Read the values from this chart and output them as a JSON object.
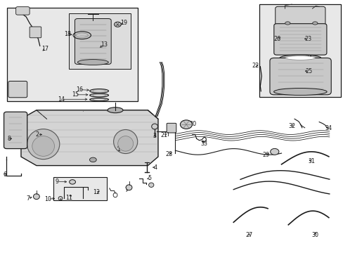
{
  "bg_color": "#ffffff",
  "diagram_color": "#1a1a1a",
  "gray_fill": "#d0d0d0",
  "light_gray": "#e8e8e8",
  "medium_gray": "#b8b8b8",
  "inset_bg": "#e8e8e8",
  "label_positions": {
    "1": [
      0.345,
      0.415,
      0.345,
      0.438
    ],
    "2": [
      0.118,
      0.468,
      0.135,
      0.468
    ],
    "3": [
      0.438,
      0.468,
      0.438,
      0.482
    ],
    "4": [
      0.445,
      0.34,
      0.432,
      0.34
    ],
    "5": [
      0.43,
      0.3,
      0.415,
      0.3
    ],
    "6": [
      0.018,
      0.31,
      0.03,
      0.31
    ],
    "7a": [
      0.095,
      0.218,
      0.108,
      0.225
    ],
    "7b": [
      0.385,
      0.252,
      0.372,
      0.26
    ],
    "8": [
      0.035,
      0.455,
      0.055,
      0.458
    ],
    "9": [
      0.178,
      0.235,
      0.192,
      0.238
    ],
    "10": [
      0.148,
      0.215,
      0.162,
      0.222
    ],
    "11": [
      0.205,
      0.22,
      0.215,
      0.228
    ],
    "12": [
      0.275,
      0.238,
      0.282,
      0.248
    ],
    "13": [
      0.295,
      0.828,
      0.278,
      0.81
    ],
    "14": [
      0.188,
      0.61,
      0.21,
      0.61
    ],
    "15": [
      0.225,
      0.628,
      0.242,
      0.628
    ],
    "16": [
      0.232,
      0.648,
      0.248,
      0.648
    ],
    "17": [
      0.148,
      0.808,
      0.135,
      0.795
    ],
    "18": [
      0.208,
      0.868,
      0.22,
      0.862
    ],
    "19": [
      0.355,
      0.912,
      0.342,
      0.908
    ],
    "20": [
      0.565,
      0.518,
      0.548,
      0.518
    ],
    "21": [
      0.475,
      0.468,
      0.488,
      0.478
    ],
    "22": [
      0.748,
      0.738,
      0.762,
      0.738
    ],
    "23": [
      0.892,
      0.755,
      0.875,
      0.76
    ],
    "24": [
      0.892,
      0.698,
      0.878,
      0.7
    ],
    "25": [
      0.892,
      0.652,
      0.878,
      0.655
    ],
    "26": [
      0.818,
      0.762,
      0.832,
      0.762
    ],
    "27": [
      0.738,
      0.072,
      0.745,
      0.085
    ],
    "28": [
      0.495,
      0.395,
      0.505,
      0.408
    ],
    "29": [
      0.785,
      0.398,
      0.795,
      0.408
    ],
    "30": [
      0.918,
      0.072,
      0.922,
      0.085
    ],
    "31": [
      0.908,
      0.368,
      0.895,
      0.375
    ],
    "32": [
      0.852,
      0.505,
      0.858,
      0.518
    ],
    "33": [
      0.598,
      0.438,
      0.605,
      0.45
    ],
    "34": [
      0.955,
      0.498,
      0.942,
      0.508
    ]
  }
}
